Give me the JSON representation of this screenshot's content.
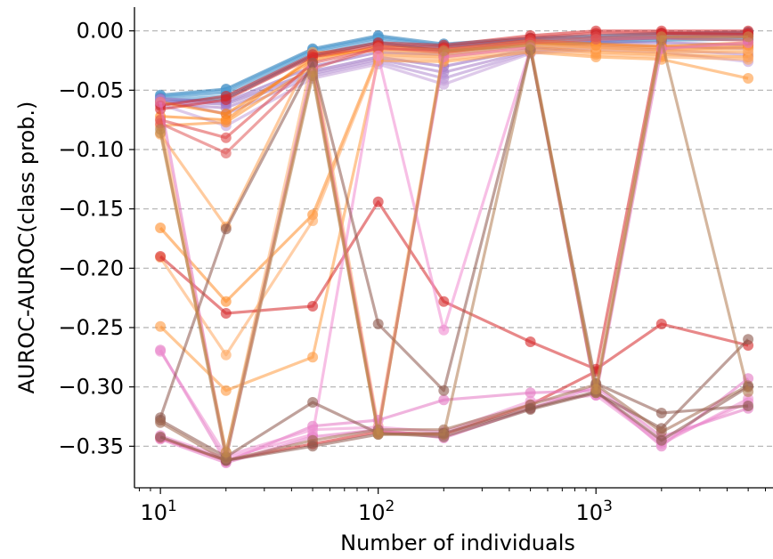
{
  "chart_data": {
    "type": "line",
    "xlabel": "Number of individuals",
    "ylabel": "AUROC-AUROC(class prob.)",
    "x_scale": "log",
    "xlim": [
      7.6,
      6500
    ],
    "ylim": [
      -0.385,
      0.02
    ],
    "x_ticks": [
      {
        "value": 10,
        "base": "10",
        "exp": "1"
      },
      {
        "value": 100,
        "base": "10",
        "exp": "2"
      },
      {
        "value": 1000,
        "base": "10",
        "exp": "3"
      }
    ],
    "y_ticks": [
      {
        "value": 0.0,
        "label": "0.00"
      },
      {
        "value": -0.05,
        "label": "−0.05"
      },
      {
        "value": -0.1,
        "label": "−0.10"
      },
      {
        "value": -0.15,
        "label": "−0.15"
      },
      {
        "value": -0.2,
        "label": "−0.20"
      },
      {
        "value": -0.25,
        "label": "−0.25"
      },
      {
        "value": -0.3,
        "label": "−0.30"
      },
      {
        "value": -0.35,
        "label": "−0.35"
      }
    ],
    "grid": "y-dashed",
    "legend": "none",
    "x": [
      10,
      20,
      50,
      100,
      200,
      500,
      1000,
      2000,
      5000
    ],
    "series": [
      {
        "color": "#1f77b4",
        "values": [
          -0.054,
          -0.049,
          -0.015,
          -0.004,
          -0.011,
          -0.006,
          -0.004,
          -0.002,
          -0.001
        ]
      },
      {
        "color": "#2f86c4",
        "values": [
          -0.056,
          -0.052,
          -0.017,
          -0.006,
          -0.013,
          -0.008,
          -0.006,
          -0.004,
          -0.003
        ]
      },
      {
        "color": "#4a97cf",
        "values": [
          -0.058,
          -0.055,
          -0.019,
          -0.008,
          -0.015,
          -0.01,
          -0.008,
          -0.006,
          -0.005
        ]
      },
      {
        "color": "#1f77b4",
        "values": [
          -0.06,
          -0.057,
          -0.021,
          -0.01,
          -0.017,
          -0.012,
          -0.01,
          -0.008,
          -0.007
        ]
      },
      {
        "color": "#5aa3d6",
        "values": [
          -0.055,
          -0.05,
          -0.016,
          -0.005,
          -0.012,
          -0.007,
          -0.005,
          -0.003,
          -0.002
        ]
      },
      {
        "color": "#9467bd",
        "values": [
          -0.057,
          -0.06,
          -0.03,
          -0.018,
          -0.02,
          -0.012,
          -0.008,
          -0.006,
          -0.004
        ]
      },
      {
        "color": "#9467bd",
        "values": [
          -0.059,
          -0.062,
          -0.034,
          -0.022,
          -0.03,
          -0.015,
          -0.01,
          -0.01,
          -0.012
        ]
      },
      {
        "color": "#a57ac7",
        "values": [
          -0.061,
          -0.065,
          -0.036,
          -0.024,
          -0.035,
          -0.017,
          -0.012,
          -0.013,
          -0.015
        ]
      },
      {
        "color": "#b08bd0",
        "values": [
          -0.058,
          -0.07,
          -0.038,
          -0.026,
          -0.04,
          -0.018,
          -0.014,
          -0.016,
          -0.02
        ]
      },
      {
        "color": "#c39ed9",
        "values": [
          -0.062,
          -0.08,
          -0.04,
          -0.028,
          -0.045,
          -0.019,
          -0.016,
          -0.018,
          -0.026
        ]
      },
      {
        "color": "#ff7f0e",
        "values": [
          -0.06,
          -0.07,
          -0.025,
          -0.013,
          -0.016,
          -0.008,
          -0.011,
          -0.013,
          -0.01
        ]
      },
      {
        "color": "#ff7f0e",
        "values": [
          -0.072,
          -0.075,
          -0.022,
          -0.015,
          -0.018,
          -0.01,
          -0.014,
          -0.016,
          -0.014
        ]
      },
      {
        "color": "#ffa050",
        "values": [
          -0.087,
          -0.165,
          -0.018,
          -0.017,
          -0.02,
          -0.012,
          -0.016,
          -0.018,
          -0.018
        ]
      },
      {
        "color": "#ff8c28",
        "values": [
          -0.166,
          -0.228,
          -0.155,
          -0.02,
          -0.022,
          -0.014,
          -0.018,
          -0.02,
          -0.022
        ]
      },
      {
        "color": "#ffa860",
        "values": [
          -0.191,
          -0.273,
          -0.16,
          -0.022,
          -0.024,
          -0.016,
          -0.02,
          -0.022,
          -0.024
        ]
      },
      {
        "color": "#ff9a40",
        "values": [
          -0.249,
          -0.303,
          -0.275,
          -0.025,
          -0.026,
          -0.018,
          -0.022,
          -0.024,
          -0.04
        ]
      },
      {
        "color": "#ffb070",
        "values": [
          -0.075,
          -0.355,
          -0.022,
          -0.333,
          -0.015,
          -0.012,
          -0.014,
          -0.017,
          -0.016
        ]
      },
      {
        "color": "#ff9030",
        "values": [
          -0.08,
          -0.077,
          -0.03,
          -0.338,
          -0.018,
          -0.01,
          -0.012,
          -0.014,
          -0.012
        ]
      },
      {
        "color": "#d62728",
        "values": [
          -0.063,
          -0.055,
          -0.02,
          -0.01,
          -0.012,
          -0.004,
          0.0,
          0.0,
          0.0
        ]
      },
      {
        "color": "#d62728",
        "values": [
          -0.066,
          -0.058,
          -0.022,
          -0.012,
          -0.014,
          -0.006,
          -0.002,
          -0.002,
          -0.002
        ]
      },
      {
        "color": "#e04848",
        "values": [
          -0.075,
          -0.09,
          -0.027,
          -0.015,
          -0.016,
          -0.008,
          -0.005,
          -0.004,
          -0.005
        ]
      },
      {
        "color": "#e05858",
        "values": [
          -0.078,
          -0.103,
          -0.032,
          -0.014,
          -0.018,
          -0.01,
          -0.007,
          -0.006,
          -0.008
        ]
      },
      {
        "color": "#d62728",
        "values": [
          -0.19,
          -0.238,
          -0.232,
          -0.144,
          -0.228,
          -0.262,
          -0.285,
          -0.247,
          -0.265
        ]
      },
      {
        "color": "#d62728",
        "values": [
          -0.343,
          -0.362,
          -0.348,
          -0.338,
          -0.34,
          -0.315,
          -0.287,
          -0.002,
          -0.003
        ]
      },
      {
        "color": "#e377c2",
        "values": [
          -0.269,
          -0.363,
          -0.333,
          -0.328,
          -0.311,
          -0.305,
          -0.303,
          -0.35,
          -0.293
        ]
      },
      {
        "color": "#f08ad0",
        "values": [
          -0.341,
          -0.36,
          -0.34,
          -0.021,
          -0.252,
          -0.015,
          -0.305,
          -0.346,
          -0.313
        ]
      },
      {
        "color": "#e377c2",
        "values": [
          -0.344,
          -0.364,
          -0.342,
          -0.336,
          -0.343,
          -0.318,
          -0.3,
          -0.342,
          -0.318
        ]
      },
      {
        "color": "#ec90d0",
        "values": [
          -0.27,
          -0.358,
          -0.336,
          -0.334,
          -0.338,
          -0.312,
          -0.307,
          -0.348,
          -0.31
        ]
      },
      {
        "color": "#e377c2",
        "values": [
          -0.06,
          -0.36,
          -0.03,
          -0.336,
          -0.022,
          -0.014,
          -0.307,
          -0.015,
          -0.01
        ]
      },
      {
        "color": "#8c564b",
        "values": [
          -0.326,
          -0.167,
          -0.027,
          -0.247,
          -0.303,
          -0.016,
          -0.297,
          -0.322,
          -0.316
        ]
      },
      {
        "color": "#8c564b",
        "values": [
          -0.328,
          -0.359,
          -0.313,
          -0.339,
          -0.342,
          -0.319,
          -0.305,
          -0.335,
          -0.26
        ]
      },
      {
        "color": "#a0684e",
        "values": [
          -0.33,
          -0.362,
          -0.345,
          -0.336,
          -0.336,
          -0.315,
          -0.298,
          -0.338,
          -0.299
        ]
      },
      {
        "color": "#8c564b",
        "values": [
          -0.342,
          -0.362,
          -0.35,
          -0.34,
          -0.339,
          -0.318,
          -0.304,
          -0.345,
          -0.3
        ]
      },
      {
        "color": "#b07a4e",
        "values": [
          -0.083,
          -0.36,
          -0.038,
          -0.34,
          -0.34,
          -0.016,
          -0.305,
          -0.008,
          -0.304
        ]
      },
      {
        "color": "#c48a4a",
        "values": [
          -0.086,
          -0.355,
          -0.035,
          -0.339,
          -0.017,
          -0.012,
          -0.302,
          -0.005,
          -0.005
        ]
      }
    ]
  }
}
